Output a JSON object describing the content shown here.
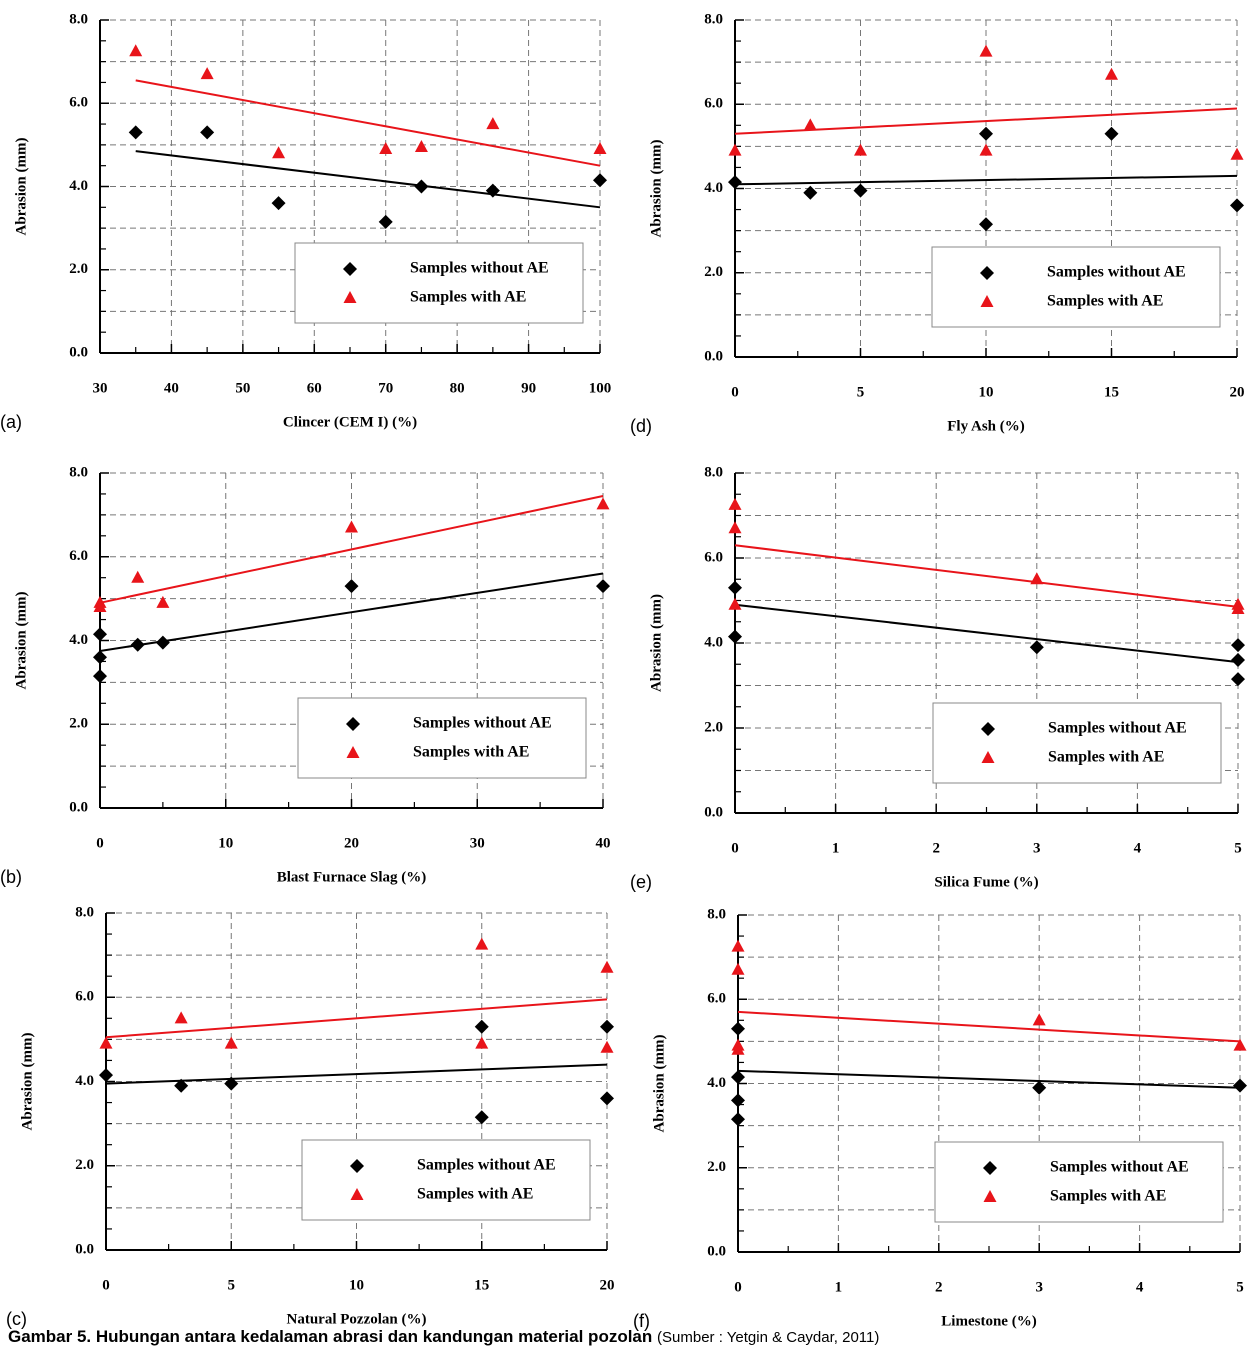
{
  "chart_data": [
    {
      "type": "scatter",
      "label": "(a)",
      "xlabel": "Clincer (CEM I) (%)",
      "ylabel": "Abrasion (mm)",
      "xlim": [
        30,
        100
      ],
      "ylim": [
        0,
        8
      ],
      "xticks": [
        30,
        40,
        50,
        60,
        70,
        80,
        90,
        100
      ],
      "yticks": [
        {
          "value": 0,
          "label": "0.0"
        },
        {
          "value": 2,
          "label": "2.0"
        },
        {
          "value": 4,
          "label": "4.0"
        },
        {
          "value": 6,
          "label": "6.0"
        },
        {
          "value": 8,
          "label": "8.0"
        }
      ],
      "grid": true,
      "legend": "lower right",
      "series": [
        {
          "name": "Samples without AE",
          "color": "#000000",
          "marker": "diamond",
          "x": [
            35,
            45,
            55,
            70,
            75,
            85,
            100
          ],
          "values": [
            5.3,
            5.3,
            3.6,
            3.15,
            4.0,
            3.9,
            4.15
          ]
        },
        {
          "name": "Samples with AE",
          "color": "#e8141a",
          "marker": "triangle",
          "x": [
            35,
            45,
            55,
            70,
            75,
            85,
            100
          ],
          "values": [
            7.25,
            6.7,
            4.8,
            4.9,
            4.95,
            5.5,
            4.9
          ]
        }
      ],
      "trendlines": [
        {
          "color": "#000000",
          "x": [
            35,
            100
          ],
          "values": [
            4.85,
            3.5
          ]
        },
        {
          "color": "#e8141a",
          "x": [
            35,
            100
          ],
          "values": [
            6.55,
            4.5
          ]
        }
      ]
    },
    {
      "type": "scatter",
      "label": "(d)",
      "xlabel": "Fly Ash (%)",
      "ylabel": "Abrasion (mm)",
      "xlim": [
        0,
        20
      ],
      "ylim": [
        0,
        8
      ],
      "xticks": [
        0,
        5,
        10,
        15,
        20
      ],
      "yticks": [
        {
          "value": 0,
          "label": "0.0"
        },
        {
          "value": 2,
          "label": "2.0"
        },
        {
          "value": 4,
          "label": "4.0"
        },
        {
          "value": 6,
          "label": "6.0"
        },
        {
          "value": 8,
          "label": "8.0"
        }
      ],
      "grid": true,
      "legend": "lower right",
      "series": [
        {
          "name": "Samples without AE",
          "color": "#000000",
          "marker": "diamond",
          "x": [
            0,
            3,
            5,
            10,
            10,
            15,
            20
          ],
          "values": [
            4.15,
            3.9,
            3.95,
            5.3,
            3.15,
            5.3,
            3.6
          ]
        },
        {
          "name": "Samples with AE",
          "color": "#e8141a",
          "marker": "triangle",
          "x": [
            0,
            3,
            5,
            10,
            10,
            15,
            20
          ],
          "values": [
            4.9,
            5.5,
            4.9,
            7.25,
            4.9,
            6.7,
            4.8
          ]
        }
      ],
      "trendlines": [
        {
          "color": "#000000",
          "x": [
            0,
            20
          ],
          "values": [
            4.1,
            4.3
          ]
        },
        {
          "color": "#e8141a",
          "x": [
            0,
            20
          ],
          "values": [
            5.3,
            5.9
          ]
        }
      ]
    },
    {
      "type": "scatter",
      "label": "(b)",
      "xlabel": "Blast Furnace Slag (%)",
      "ylabel": "Abrasion (mm)",
      "xlim": [
        0,
        40
      ],
      "ylim": [
        0,
        8
      ],
      "xticks": [
        0,
        10,
        20,
        30,
        40
      ],
      "yticks": [
        {
          "value": 0,
          "label": "0.0"
        },
        {
          "value": 2,
          "label": "2.0"
        },
        {
          "value": 4,
          "label": "4.0"
        },
        {
          "value": 6,
          "label": "6.0"
        },
        {
          "value": 8,
          "label": "8.0"
        }
      ],
      "grid": true,
      "legend": "lower right",
      "series": [
        {
          "name": "Samples without AE",
          "color": "#000000",
          "marker": "diamond",
          "x": [
            0,
            0,
            0,
            3,
            5,
            20,
            40
          ],
          "values": [
            4.15,
            3.6,
            3.15,
            3.9,
            3.95,
            5.3,
            5.3
          ]
        },
        {
          "name": "Samples with AE",
          "color": "#e8141a",
          "marker": "triangle",
          "x": [
            0,
            0,
            3,
            5,
            20,
            40
          ],
          "values": [
            4.9,
            4.8,
            5.5,
            4.9,
            6.7,
            7.25
          ]
        }
      ],
      "trendlines": [
        {
          "color": "#000000",
          "x": [
            0,
            40
          ],
          "values": [
            3.75,
            5.6
          ]
        },
        {
          "color": "#e8141a",
          "x": [
            0,
            40
          ],
          "values": [
            4.9,
            7.45
          ]
        }
      ]
    },
    {
      "type": "scatter",
      "label": "(e)",
      "xlabel": "Silica Fume (%)",
      "ylabel": "Abrasion (mm)",
      "xlim": [
        0,
        5
      ],
      "ylim": [
        0,
        8
      ],
      "xticks": [
        0,
        1,
        2,
        3,
        4,
        5
      ],
      "yticks": [
        {
          "value": 0,
          "label": "0.0"
        },
        {
          "value": 2,
          "label": "2.0"
        },
        {
          "value": 4,
          "label": "4.0"
        },
        {
          "value": 6,
          "label": "6.0"
        },
        {
          "value": 8,
          "label": "8.0"
        }
      ],
      "grid": true,
      "legend": "lower right",
      "series": [
        {
          "name": "Samples without AE",
          "color": "#000000",
          "marker": "diamond",
          "x": [
            0,
            0,
            3,
            5,
            5,
            5
          ],
          "values": [
            5.3,
            4.15,
            3.9,
            3.95,
            3.6,
            3.15
          ]
        },
        {
          "name": "Samples with AE",
          "color": "#e8141a",
          "marker": "triangle",
          "x": [
            0,
            0,
            0,
            3,
            5,
            5
          ],
          "values": [
            7.25,
            6.7,
            4.9,
            5.5,
            4.9,
            4.8
          ]
        }
      ],
      "trendlines": [
        {
          "color": "#000000",
          "x": [
            0,
            5
          ],
          "values": [
            4.9,
            3.55
          ]
        },
        {
          "color": "#e8141a",
          "x": [
            0,
            5
          ],
          "values": [
            6.3,
            4.85
          ]
        }
      ]
    },
    {
      "type": "scatter",
      "label": "(c)",
      "xlabel": "Natural Pozzolan (%)",
      "ylabel": "Abrasion (mm)",
      "xlim": [
        0,
        20
      ],
      "ylim": [
        0,
        8
      ],
      "xticks": [
        0,
        5,
        10,
        15,
        20
      ],
      "yticks": [
        {
          "value": 0,
          "label": "0.0"
        },
        {
          "value": 2,
          "label": "2.0"
        },
        {
          "value": 4,
          "label": "4.0"
        },
        {
          "value": 6,
          "label": "6.0"
        },
        {
          "value": 8,
          "label": "8.0"
        }
      ],
      "grid": true,
      "legend": "lower right",
      "series": [
        {
          "name": "Samples without AE",
          "color": "#000000",
          "marker": "diamond",
          "x": [
            0,
            3,
            5,
            15,
            15,
            20,
            20
          ],
          "values": [
            4.15,
            3.9,
            3.95,
            5.3,
            3.15,
            5.3,
            3.6
          ]
        },
        {
          "name": "Samples with AE",
          "color": "#e8141a",
          "marker": "triangle",
          "x": [
            0,
            3,
            5,
            15,
            15,
            20,
            20
          ],
          "values": [
            4.9,
            5.5,
            4.9,
            7.25,
            4.9,
            6.7,
            4.8
          ]
        }
      ],
      "trendlines": [
        {
          "color": "#000000",
          "x": [
            0,
            20
          ],
          "values": [
            3.95,
            4.4
          ]
        },
        {
          "color": "#e8141a",
          "x": [
            0,
            20
          ],
          "values": [
            5.05,
            5.95
          ]
        }
      ]
    },
    {
      "type": "scatter",
      "label": "(f)",
      "xlabel": "Limestone (%)",
      "ylabel": "Abrasion (mm)",
      "xlim": [
        0,
        5
      ],
      "ylim": [
        0,
        8
      ],
      "xticks": [
        0,
        1,
        2,
        3,
        4,
        5
      ],
      "yticks": [
        {
          "value": 0,
          "label": "0.0"
        },
        {
          "value": 2,
          "label": "2.0"
        },
        {
          "value": 4,
          "label": "4.0"
        },
        {
          "value": 6,
          "label": "6.0"
        },
        {
          "value": 8,
          "label": "8.0"
        }
      ],
      "grid": true,
      "legend": "lower right",
      "series": [
        {
          "name": "Samples without AE",
          "color": "#000000",
          "marker": "diamond",
          "x": [
            0,
            0,
            0,
            0,
            3,
            5
          ],
          "values": [
            5.3,
            4.15,
            3.6,
            3.15,
            3.9,
            3.95
          ]
        },
        {
          "name": "Samples with AE",
          "color": "#e8141a",
          "marker": "triangle",
          "x": [
            0,
            0,
            0,
            0,
            3,
            5
          ],
          "values": [
            7.25,
            6.7,
            4.9,
            4.8,
            5.5,
            4.9
          ]
        }
      ],
      "trendlines": [
        {
          "color": "#000000",
          "x": [
            0,
            5
          ],
          "values": [
            4.3,
            3.9
          ]
        },
        {
          "color": "#e8141a",
          "x": [
            0,
            5
          ],
          "values": [
            5.7,
            5.0
          ]
        }
      ]
    }
  ],
  "caption": {
    "title": "Gambar 5. Hubungan antara kedalaman abrasi dan kandungan material pozolan",
    "source": "(Sumber : Yetgin & Caydar, 2011)"
  }
}
